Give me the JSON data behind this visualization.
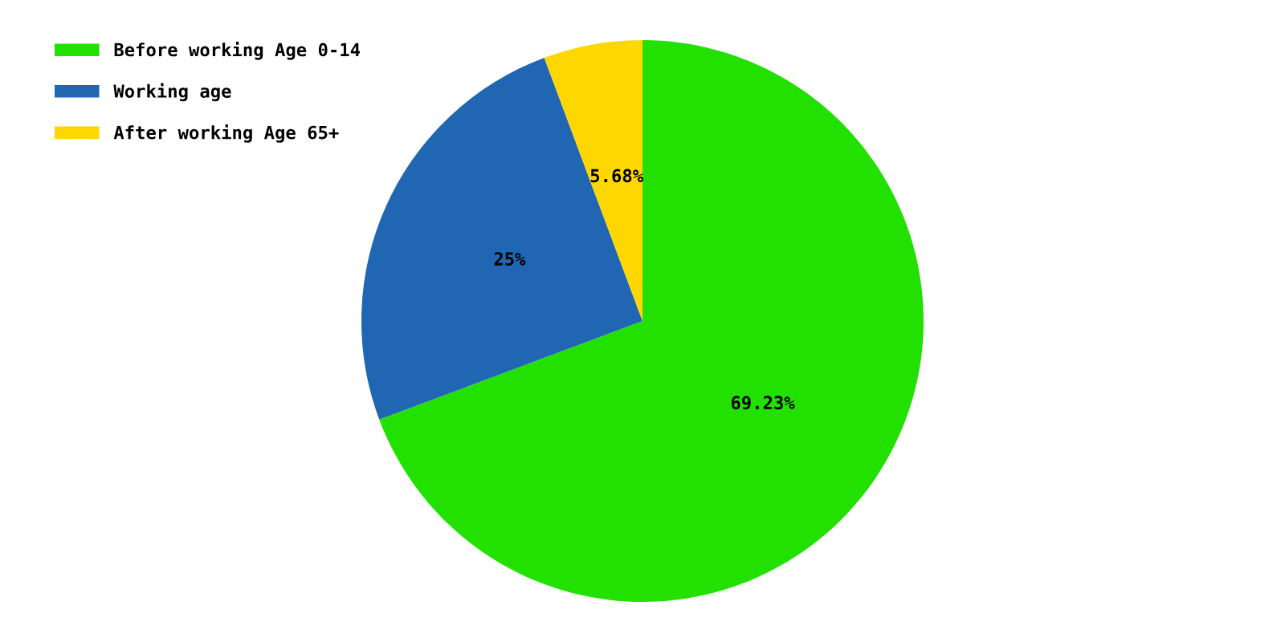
{
  "chart_data": {
    "type": "pie",
    "categories": [
      "Before working Age 0-14",
      "Working age",
      "After working Age 65+"
    ],
    "values": [
      69.23,
      25,
      5.68
    ],
    "colors": [
      "#22e000",
      "#2066b3",
      "#ffd700"
    ],
    "value_labels": [
      "69.23%",
      "25%",
      "5.68%"
    ],
    "legend": "top left"
  }
}
